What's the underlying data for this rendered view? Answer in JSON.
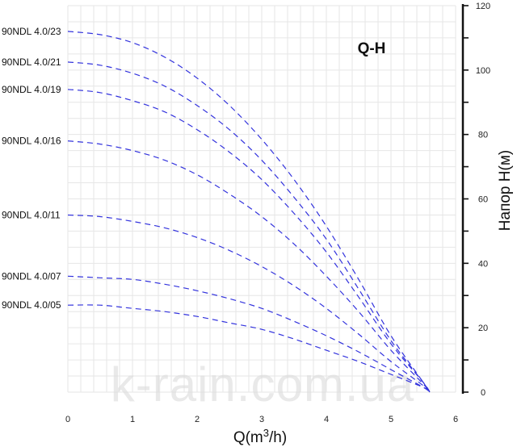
{
  "chart_data": {
    "type": "line",
    "title": "Q-H",
    "xlabel_base": "Q(m",
    "xlabel_sup": "3",
    "xlabel_end": "/h)",
    "ylabel": "Напор H(м)",
    "xlim": [
      0,
      6
    ],
    "ylim": [
      0,
      120
    ],
    "x_ticks": [
      0,
      1,
      2,
      3,
      4,
      5,
      6
    ],
    "y_ticks": [
      0,
      20,
      40,
      60,
      80,
      100,
      120
    ],
    "grid": true,
    "y_axis_position": "right",
    "line_style": "dashed",
    "series_color": "#3333dd",
    "watermark": "k-rain.com.ua",
    "series": [
      {
        "name": "90NDL 4.0/23",
        "x": [
          0,
          0.5,
          1,
          1.5,
          2,
          2.5,
          3,
          3.5,
          4,
          4.5,
          5,
          5.5,
          5.6
        ],
        "y": [
          112,
          111,
          108.5,
          104,
          97.5,
          89,
          78.5,
          66,
          51.5,
          35,
          17.5,
          3,
          0
        ]
      },
      {
        "name": "90NDL 4.0/21",
        "x": [
          0,
          0.5,
          1,
          1.5,
          2,
          2.5,
          3,
          3.5,
          4,
          4.5,
          5,
          5.5,
          5.6
        ],
        "y": [
          102.5,
          101.5,
          99,
          95,
          89,
          81.5,
          72,
          60.5,
          47.5,
          32,
          16,
          3,
          0
        ]
      },
      {
        "name": "90NDL 4.0/19",
        "x": [
          0,
          0.5,
          1,
          1.5,
          2,
          2.5,
          3,
          3.5,
          4,
          4.5,
          5,
          5.5,
          5.6
        ],
        "y": [
          94,
          93,
          90.5,
          87,
          81.5,
          74.5,
          66,
          55.5,
          43.5,
          29.5,
          15,
          3,
          0
        ]
      },
      {
        "name": "90NDL 4.0/16",
        "x": [
          0,
          0.5,
          1,
          1.5,
          2,
          2.5,
          3,
          3.5,
          4,
          4.5,
          5,
          5.5,
          5.6
        ],
        "y": [
          78,
          77,
          75,
          72,
          67.5,
          61.5,
          54.5,
          46,
          36,
          25,
          13,
          2.5,
          0
        ]
      },
      {
        "name": "90NDL 4.0/11",
        "x": [
          0,
          0.5,
          1,
          1.5,
          2,
          2.5,
          3,
          3.5,
          4,
          4.5,
          5,
          5.5,
          5.6
        ],
        "y": [
          55,
          54.5,
          53,
          51,
          48,
          44,
          39,
          33,
          26,
          18,
          9.5,
          2,
          0
        ]
      },
      {
        "name": "90NDL 4.0/07",
        "x": [
          0,
          0.5,
          1,
          1.5,
          2,
          2.5,
          3,
          3.5,
          4,
          4.5,
          5,
          5.5,
          5.6
        ],
        "y": [
          36,
          35.5,
          35,
          33.5,
          31.5,
          29,
          26,
          22,
          17.5,
          12.5,
          7,
          1.5,
          0
        ]
      },
      {
        "name": "90NDL 4.0/05",
        "x": [
          0,
          0.5,
          1,
          1.5,
          2,
          2.5,
          3,
          3.5,
          4,
          4.5,
          5,
          5.5,
          5.6
        ],
        "y": [
          27,
          27,
          26,
          25,
          23.5,
          21.5,
          19.5,
          16.5,
          13,
          9.5,
          5.5,
          1.5,
          0
        ]
      }
    ]
  }
}
